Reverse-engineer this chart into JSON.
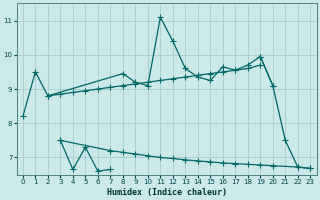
{
  "xlabel": "Humidex (Indice chaleur)",
  "bg_color": "#cce8e8",
  "grid_color": "#aacccc",
  "line_color": "#006868",
  "xlim": [
    -0.5,
    23.5
  ],
  "ylim": [
    6.5,
    11.5
  ],
  "yticks": [
    7,
    8,
    9,
    10,
    11
  ],
  "xticks": [
    0,
    1,
    2,
    3,
    4,
    5,
    6,
    7,
    8,
    9,
    10,
    11,
    12,
    13,
    14,
    15,
    16,
    17,
    18,
    19,
    20,
    21,
    22,
    23
  ],
  "line1_x": [
    0,
    1,
    2,
    8,
    9,
    10,
    11,
    12,
    13,
    14,
    15,
    16,
    17,
    18,
    19,
    20
  ],
  "line1_y": [
    8.2,
    9.5,
    8.8,
    9.45,
    9.2,
    9.1,
    11.1,
    10.4,
    9.6,
    9.35,
    9.25,
    9.65,
    9.55,
    9.7,
    9.95,
    9.1
  ],
  "line2_x": [
    2,
    3,
    4,
    5,
    6,
    7,
    8,
    9,
    10,
    11,
    12,
    13,
    14,
    15,
    16,
    17,
    18,
    19
  ],
  "line2_y": [
    8.8,
    8.85,
    8.9,
    8.95,
    9.0,
    9.05,
    9.1,
    9.15,
    9.2,
    9.25,
    9.3,
    9.35,
    9.4,
    9.45,
    9.5,
    9.55,
    9.6,
    9.7
  ],
  "line3_x": [
    3,
    4,
    5,
    6,
    7
  ],
  "line3_y": [
    7.5,
    6.65,
    7.3,
    6.6,
    6.65
  ],
  "line4_x": [
    3,
    7,
    8,
    9,
    10,
    11,
    12,
    13,
    14,
    15,
    16,
    17,
    18,
    19,
    20,
    22,
    23
  ],
  "line4_y": [
    7.5,
    7.2,
    7.15,
    7.1,
    7.05,
    7.0,
    6.97,
    6.93,
    6.9,
    6.87,
    6.84,
    6.82,
    6.8,
    6.78,
    6.76,
    6.72,
    6.68
  ],
  "line5_x": [
    19,
    20,
    21,
    22,
    23
  ],
  "line5_y": [
    9.95,
    9.1,
    7.5,
    6.72,
    6.68
  ]
}
